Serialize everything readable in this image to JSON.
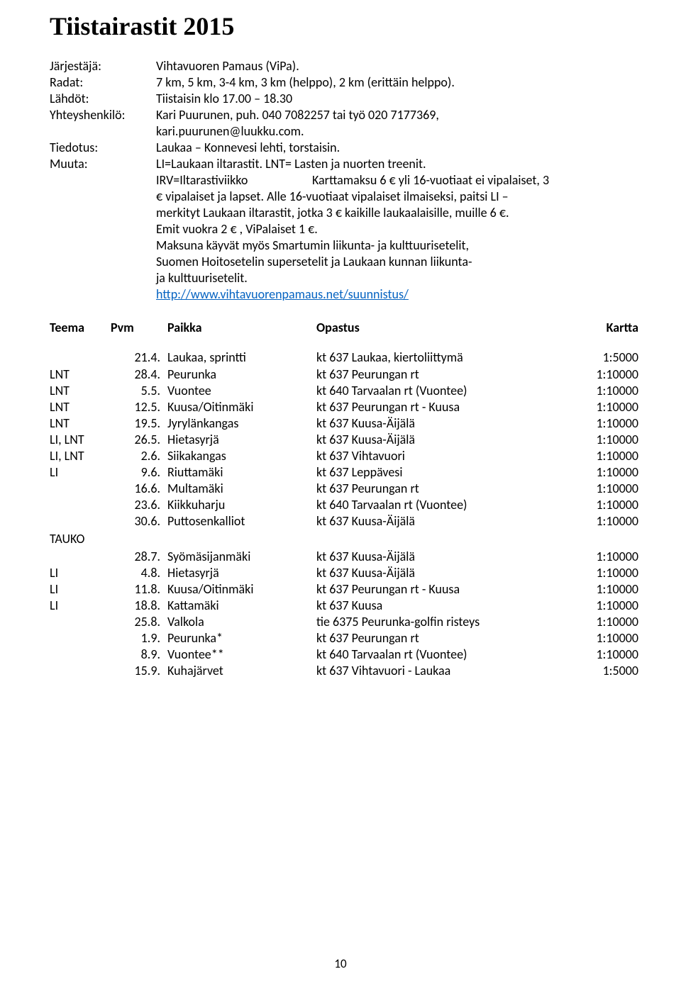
{
  "title": "Tiistairastit  2015",
  "info": {
    "jarjestaja_label": "Järjestäjä:",
    "jarjestaja_value": "Vihtavuoren Pamaus (ViPa).",
    "radat_label": "Radat:",
    "radat_value": "7 km, 5 km, 3-4 km, 3 km (helppo), 2 km (erittäin helppo).",
    "lahdot_label": "Lähdöt:",
    "lahdot_value": "Tiistaisin klo 17.00 – 18.30",
    "yhteys_label": "Yhteyshenkilö:",
    "yhteys_value": "Kari Puurunen, puh. 040 7082257 tai työ 020 7177369,",
    "yhteys_value2": "kari.puurunen@luukku.com.",
    "tiedotus_label": "Tiedotus:",
    "tiedotus_value": "Laukaa – Konnevesi lehti, torstaisin.",
    "muuta_label": "Muuta:",
    "muuta_value": "LI=Laukaan iltarastit. LNT= Lasten ja nuorten treenit.",
    "irv_label": "IRV=Iltarastiviikko",
    "irv_value": "Karttamaksu 6 € yli 16-vuotiaat ei vipalaiset, 3",
    "muuta_cont1": "€ vipalaiset ja lapset. Alle 16-vuotiaat vipalaiset ilmaiseksi, paitsi LI –",
    "muuta_cont2": "merkityt Laukaan iltarastit, jotka 3 € kaikille laukaalaisille, muille 6 €.",
    "muuta_cont3": "Emit vuokra  2 € , ViPalaiset  1 €.",
    "muuta_cont4": "Maksuna käyvät myös Smartumin liikunta- ja kulttuurisetelit,",
    "muuta_cont5": "Suomen Hoitosetelin supersetelit ja Laukaan kunnan liikunta-",
    "muuta_cont6": "ja kulttuurisetelit.",
    "url": "http://www.vihtavuorenpamaus.net/suunnistus/"
  },
  "header": {
    "teema": "Teema",
    "pvm": "Pvm",
    "paikka": "Paikka",
    "opastus": "Opastus",
    "kartta": "Kartta"
  },
  "tauko_label": "TAUKO",
  "rows1": [
    {
      "teema": "",
      "pvm": "21.4.",
      "paikka": "Laukaa, sprintti",
      "opastus": "kt 637 Laukaa, kiertoliittymä",
      "kartta": "1:5000"
    },
    {
      "teema": "LNT",
      "pvm": "28.4.",
      "paikka": "Peurunka",
      "opastus": "kt 637 Peurungan rt",
      "kartta": "1:10000"
    },
    {
      "teema": "LNT",
      "pvm": "5.5.",
      "paikka": "Vuontee",
      "opastus": "kt 640 Tarvaalan rt (Vuontee)",
      "kartta": "1:10000"
    },
    {
      "teema": "LNT",
      "pvm": "12.5.",
      "paikka": "Kuusa/Oitinmäki",
      "opastus": "kt 637 Peurungan rt - Kuusa",
      "kartta": "1:10000"
    },
    {
      "teema": "LNT",
      "pvm": "19.5.",
      "paikka": "Jyrylänkangas",
      "opastus": "kt 637 Kuusa-Äijälä",
      "kartta": "1:10000"
    },
    {
      "teema": "LI, LNT",
      "pvm": "26.5.",
      "paikka": "Hietasyrjä",
      "opastus": "kt 637 Kuusa-Äijälä",
      "kartta": "1:10000"
    },
    {
      "teema": "LI, LNT",
      "pvm": "2.6.",
      "paikka": "Siikakangas",
      "opastus": "kt 637 Vihtavuori",
      "kartta": "1:10000"
    },
    {
      "teema": "LI",
      "pvm": "9.6.",
      "paikka": "Riuttamäki",
      "opastus": "kt 637 Leppävesi",
      "kartta": "1:10000"
    },
    {
      "teema": "",
      "pvm": "16.6.",
      "paikka": "Multamäki",
      "opastus": "kt 637 Peurungan rt",
      "kartta": "1:10000"
    },
    {
      "teema": "",
      "pvm": "23.6.",
      "paikka": "Kiikkuharju",
      "opastus": "kt 640 Tarvaalan rt  (Vuontee)",
      "kartta": "1:10000"
    },
    {
      "teema": "",
      "pvm": "30.6.",
      "paikka": "Puttosenkalliot",
      "opastus": "kt 637 Kuusa-Äijälä",
      "kartta": "1:10000"
    }
  ],
  "rows2": [
    {
      "teema": "",
      "pvm": "28.7.",
      "paikka": "Syömäsijanmäki",
      "opastus": "kt 637 Kuusa-Äijälä",
      "kartta": "1:10000"
    },
    {
      "teema": "LI",
      "pvm": "4.8.",
      "paikka": "Hietasyrjä",
      "opastus": "kt 637 Kuusa-Äijälä",
      "kartta": "1:10000"
    },
    {
      "teema": "LI",
      "pvm": "11.8.",
      "paikka": "Kuusa/Oitinmäki",
      "opastus": "kt 637 Peurungan rt - Kuusa",
      "kartta": "1:10000"
    },
    {
      "teema": "LI",
      "pvm": "18.8.",
      "paikka": "Kattamäki",
      "opastus": "kt 637 Kuusa",
      "kartta": "1:10000"
    },
    {
      "teema": "",
      "pvm": "25.8.",
      "paikka": "Valkola",
      "opastus": "tie 6375 Peurunka-golfin risteys",
      "kartta": "1:10000"
    },
    {
      "teema": "",
      "pvm": "1.9.",
      "paikka": "Peurunka*",
      "opastus": "kt 637 Peurungan rt",
      "kartta": "1:10000"
    },
    {
      "teema": "",
      "pvm": "8.9.",
      "paikka": "Vuontee**",
      "opastus": "kt 640 Tarvaalan rt  (Vuontee)",
      "kartta": "1:10000"
    },
    {
      "teema": "",
      "pvm": "15.9.",
      "paikka": "Kuhajärvet",
      "opastus": "kt 637 Vihtavuori - Laukaa",
      "kartta": "1:5000"
    }
  ],
  "page_number": "10"
}
